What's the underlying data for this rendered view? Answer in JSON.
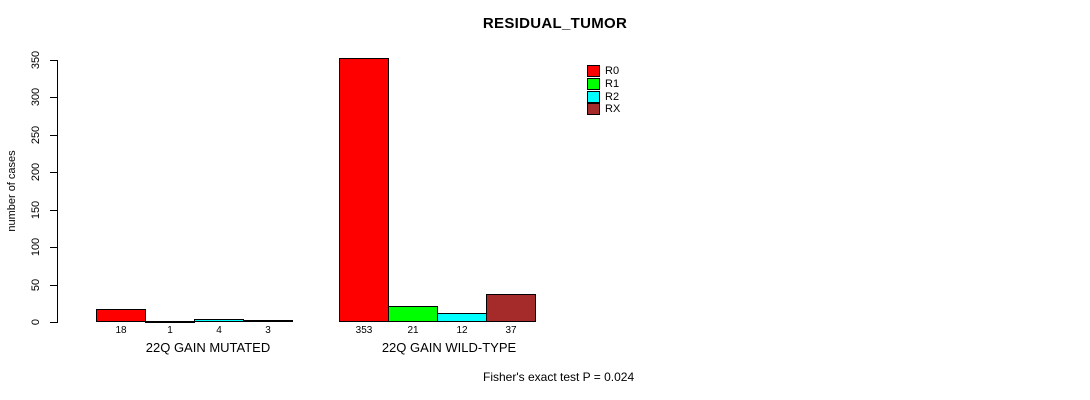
{
  "chart_data": {
    "type": "bar",
    "title": "RESIDUAL_TUMOR",
    "ylabel": "number of cases",
    "ylim": [
      0,
      350
    ],
    "yticks": [
      0,
      50,
      100,
      150,
      200,
      250,
      300,
      350
    ],
    "grid": false,
    "legend_position": "top-right-inside",
    "categories": [
      "22Q GAIN MUTATED",
      "22Q GAIN WILD-TYPE"
    ],
    "series": [
      {
        "name": "R0",
        "color": "#FF0000",
        "values": [
          18,
          353
        ]
      },
      {
        "name": "R1",
        "color": "#00FF00",
        "values": [
          1,
          21
        ]
      },
      {
        "name": "R2",
        "color": "#00FFFF",
        "values": [
          4,
          12
        ]
      },
      {
        "name": "RX",
        "color": "#A52A2A",
        "values": [
          3,
          37
        ]
      }
    ],
    "bar_labels": [
      [
        "18",
        "1",
        "4",
        "3"
      ],
      [
        "353",
        "21",
        "12",
        "37"
      ]
    ],
    "annotation": "Fisher's exact test P = 0.024"
  }
}
